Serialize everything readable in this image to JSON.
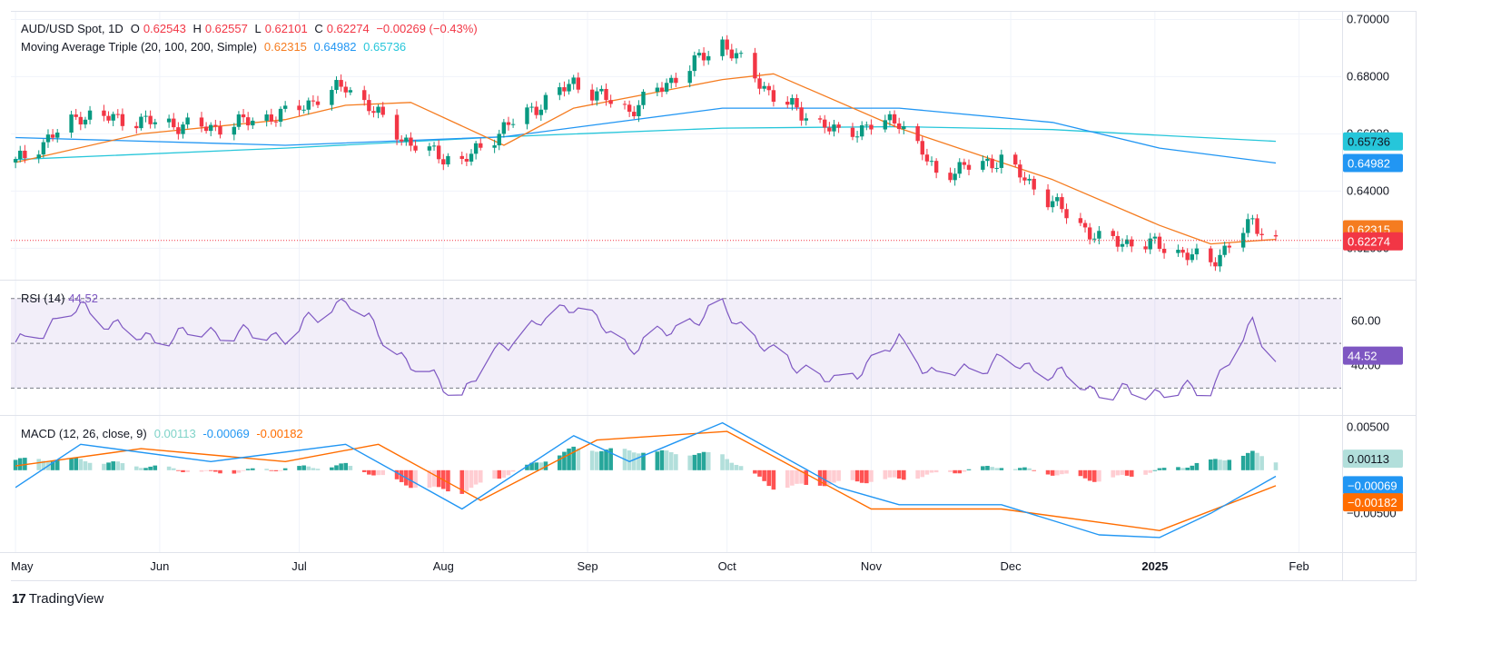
{
  "legend": {
    "symbol": "AUD/USD Spot, 1D",
    "open_label": "O",
    "open": "0.62543",
    "high_label": "H",
    "high": "0.62557",
    "low_label": "L",
    "low": "0.62101",
    "close_label": "C",
    "close": "0.62274",
    "change": "−0.00269 (−0.43%)",
    "ma_name": "Moving Average Triple (20, 100, 200, Simple)",
    "ma20": "0.62315",
    "ma100": "0.64982",
    "ma200": "0.65736",
    "rsi_name": "RSI (14)",
    "rsi": "44.52",
    "macd_name": "MACD (12, 26, close, 9)",
    "macd_hist": "0.00113",
    "macd_line": "-0.00069",
    "macd_signal": "-0.00182"
  },
  "badges": {
    "ma200": "0.65736",
    "ma100": "0.64982",
    "ma20": "0.62315",
    "close": "0.62274",
    "rsi": "44.52",
    "macd_hist": "0.00113",
    "macd_line": "−0.00069",
    "macd_signal": "−0.00182"
  },
  "colors": {
    "up": "#089981",
    "down": "#f23645",
    "ma20": "#f57c20",
    "ma100": "#2196f3",
    "ma200": "#26c6da",
    "rsi": "#7e57c2",
    "rsi_badge": "#7e57c2",
    "macd_line": "#2196f3",
    "macd_signal": "#ff6d00",
    "hist_pos_strong": "#26a69a",
    "hist_pos_weak": "#b2dfdb",
    "hist_neg_strong": "#ff5252",
    "hist_neg_weak": "#ffcdd2"
  },
  "watermark": "TradingView",
  "chart_data": {
    "type": "line",
    "title": "AUD/USD Spot, 1D",
    "x_tick_labels": [
      "May",
      "Jun",
      "Jul",
      "Aug",
      "Sep",
      "Oct",
      "Nov",
      "Dec",
      "2025",
      "Feb"
    ],
    "price_axis": {
      "ticks": [
        "0.70000",
        "0.68000",
        "0.66000",
        "0.64000",
        "0.62000"
      ],
      "ylim": [
        0.609,
        0.703
      ]
    },
    "rsi_axis": {
      "ticks": [
        "60.00",
        "40.00"
      ],
      "ylim": [
        18,
        78
      ],
      "bands": [
        70,
        50,
        30
      ]
    },
    "macd_axis": {
      "ticks": [
        "0.00500",
        "-0.00500"
      ],
      "ylim": [
        -0.0095,
        0.0063
      ]
    },
    "price_series": [
      {
        "x": "2024-05-01",
        "y": 0.65
      },
      {
        "x": "2024-05-15",
        "y": 0.6665
      },
      {
        "x": "2024-05-28",
        "y": 0.6645
      },
      {
        "x": "2024-06-12",
        "y": 0.662
      },
      {
        "x": "2024-06-28",
        "y": 0.667
      },
      {
        "x": "2024-07-11",
        "y": 0.677
      },
      {
        "x": "2024-07-25",
        "y": 0.656
      },
      {
        "x": "2024-08-05",
        "y": 0.65
      },
      {
        "x": "2024-08-14",
        "y": 0.662
      },
      {
        "x": "2024-08-29",
        "y": 0.678
      },
      {
        "x": "2024-09-10",
        "y": 0.668
      },
      {
        "x": "2024-09-30",
        "y": 0.692
      },
      {
        "x": "2024-10-11",
        "y": 0.673
      },
      {
        "x": "2024-10-25",
        "y": 0.66
      },
      {
        "x": "2024-11-07",
        "y": 0.665
      },
      {
        "x": "2024-11-15",
        "y": 0.646
      },
      {
        "x": "2024-11-29",
        "y": 0.651
      },
      {
        "x": "2024-12-10",
        "y": 0.636
      },
      {
        "x": "2024-12-20",
        "y": 0.623
      },
      {
        "x": "2025-01-02",
        "y": 0.621
      },
      {
        "x": "2025-01-13",
        "y": 0.615
      },
      {
        "x": "2025-01-22",
        "y": 0.629
      },
      {
        "x": "2025-01-27",
        "y": 0.6227
      }
    ],
    "ma20_series": [
      {
        "x": "2024-05-01",
        "y": 0.65
      },
      {
        "x": "2024-05-28",
        "y": 0.66
      },
      {
        "x": "2024-06-28",
        "y": 0.665
      },
      {
        "x": "2024-07-11",
        "y": 0.67
      },
      {
        "x": "2024-07-25",
        "y": 0.671
      },
      {
        "x": "2024-08-14",
        "y": 0.656
      },
      {
        "x": "2024-08-29",
        "y": 0.669
      },
      {
        "x": "2024-09-30",
        "y": 0.679
      },
      {
        "x": "2024-10-11",
        "y": 0.681
      },
      {
        "x": "2024-11-07",
        "y": 0.662
      },
      {
        "x": "2024-12-10",
        "y": 0.644
      },
      {
        "x": "2025-01-02",
        "y": 0.628
      },
      {
        "x": "2025-01-13",
        "y": 0.6215
      },
      {
        "x": "2025-01-27",
        "y": 0.6231
      }
    ],
    "ma100_series": [
      {
        "x": "2024-05-01",
        "y": 0.6587
      },
      {
        "x": "2024-06-28",
        "y": 0.656
      },
      {
        "x": "2024-08-14",
        "y": 0.659
      },
      {
        "x": "2024-09-30",
        "y": 0.669
      },
      {
        "x": "2024-11-07",
        "y": 0.669
      },
      {
        "x": "2024-12-10",
        "y": 0.664
      },
      {
        "x": "2025-01-02",
        "y": 0.655
      },
      {
        "x": "2025-01-27",
        "y": 0.6498
      }
    ],
    "ma200_series": [
      {
        "x": "2024-05-01",
        "y": 0.651
      },
      {
        "x": "2024-06-28",
        "y": 0.655
      },
      {
        "x": "2024-08-14",
        "y": 0.659
      },
      {
        "x": "2024-09-30",
        "y": 0.662
      },
      {
        "x": "2024-11-07",
        "y": 0.6625
      },
      {
        "x": "2024-12-10",
        "y": 0.6615
      },
      {
        "x": "2025-01-02",
        "y": 0.6595
      },
      {
        "x": "2025-01-27",
        "y": 0.6574
      }
    ],
    "rsi_series": [
      {
        "x": "2024-05-01",
        "y": 49
      },
      {
        "x": "2024-05-15",
        "y": 66
      },
      {
        "x": "2024-05-28",
        "y": 52
      },
      {
        "x": "2024-06-12",
        "y": 55
      },
      {
        "x": "2024-06-28",
        "y": 53
      },
      {
        "x": "2024-07-11",
        "y": 70
      },
      {
        "x": "2024-07-25",
        "y": 40
      },
      {
        "x": "2024-08-05",
        "y": 27
      },
      {
        "x": "2024-08-14",
        "y": 50
      },
      {
        "x": "2024-08-29",
        "y": 68
      },
      {
        "x": "2024-09-10",
        "y": 48
      },
      {
        "x": "2024-09-30",
        "y": 66
      },
      {
        "x": "2024-10-11",
        "y": 45
      },
      {
        "x": "2024-10-25",
        "y": 32
      },
      {
        "x": "2024-11-07",
        "y": 51
      },
      {
        "x": "2024-11-15",
        "y": 35
      },
      {
        "x": "2024-11-29",
        "y": 42
      },
      {
        "x": "2024-12-10",
        "y": 37
      },
      {
        "x": "2024-12-20",
        "y": 28
      },
      {
        "x": "2025-01-02",
        "y": 28
      },
      {
        "x": "2025-01-13",
        "y": 30
      },
      {
        "x": "2025-01-22",
        "y": 58
      },
      {
        "x": "2025-01-27",
        "y": 44.52
      }
    ],
    "macd_series": [
      {
        "x": "2024-05-01",
        "y": -0.002
      },
      {
        "x": "2024-05-15",
        "y": 0.003
      },
      {
        "x": "2024-06-12",
        "y": 0.001
      },
      {
        "x": "2024-07-11",
        "y": 0.003
      },
      {
        "x": "2024-08-05",
        "y": -0.0045
      },
      {
        "x": "2024-08-29",
        "y": 0.004
      },
      {
        "x": "2024-09-10",
        "y": 0.001
      },
      {
        "x": "2024-09-30",
        "y": 0.0055
      },
      {
        "x": "2024-10-25",
        "y": -0.002
      },
      {
        "x": "2024-11-07",
        "y": -0.004
      },
      {
        "x": "2024-11-29",
        "y": -0.004
      },
      {
        "x": "2024-12-20",
        "y": -0.0075
      },
      {
        "x": "2025-01-02",
        "y": -0.0078
      },
      {
        "x": "2025-01-13",
        "y": -0.005
      },
      {
        "x": "2025-01-27",
        "y": -0.0007
      }
    ],
    "signal_series": [
      {
        "x": "2024-05-01",
        "y": 0.0005
      },
      {
        "x": "2024-05-28",
        "y": 0.0025
      },
      {
        "x": "2024-06-28",
        "y": 0.001
      },
      {
        "x": "2024-07-18",
        "y": 0.003
      },
      {
        "x": "2024-08-09",
        "y": -0.0035
      },
      {
        "x": "2024-09-03",
        "y": 0.0035
      },
      {
        "x": "2024-10-01",
        "y": 0.0045
      },
      {
        "x": "2024-11-01",
        "y": -0.0045
      },
      {
        "x": "2024-11-29",
        "y": -0.0045
      },
      {
        "x": "2025-01-02",
        "y": -0.007
      },
      {
        "x": "2025-01-27",
        "y": -0.0018
      }
    ],
    "histogram_series": [
      {
        "x": "2024-05-15",
        "y": 0.0012
      },
      {
        "x": "2024-06-12",
        "y": -0.0003
      },
      {
        "x": "2024-07-11",
        "y": 0.0006
      },
      {
        "x": "2024-07-25",
        "y": -0.0018
      },
      {
        "x": "2024-08-05",
        "y": -0.0025
      },
      {
        "x": "2024-08-29",
        "y": 0.0025
      },
      {
        "x": "2024-09-30",
        "y": 0.0018
      },
      {
        "x": "2024-10-11",
        "y": -0.002
      },
      {
        "x": "2024-11-07",
        "y": -0.001
      },
      {
        "x": "2024-11-29",
        "y": 0.0005
      },
      {
        "x": "2024-12-20",
        "y": -0.0012
      },
      {
        "x": "2025-01-13",
        "y": 0.001
      },
      {
        "x": "2025-01-22",
        "y": 0.002
      },
      {
        "x": "2025-01-27",
        "y": 0.0011
      }
    ]
  }
}
